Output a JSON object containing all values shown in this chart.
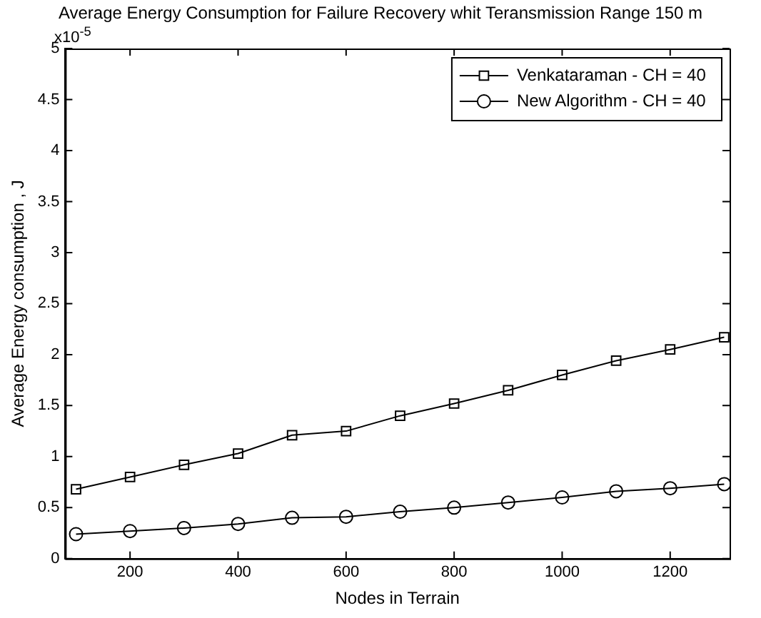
{
  "chart_data": {
    "type": "line",
    "title": "Average Energy Consumption for Failure Recovery whit Teransmission Range 150 m",
    "xlabel": "Nodes in Terrain",
    "ylabel": "Average Energy consumption , J",
    "annotations": [
      "x10$^{-5}$"
    ],
    "x": [
      100,
      200,
      300,
      400,
      500,
      600,
      700,
      800,
      900,
      1000,
      1100,
      1200,
      1300
    ],
    "series": [
      {
        "name": "Venkataraman - CH = 40",
        "color": "#000000",
        "marker": "square",
        "values": [
          0.68,
          0.8,
          0.92,
          1.03,
          1.21,
          1.25,
          1.4,
          1.52,
          1.65,
          1.8,
          1.94,
          2.05,
          2.17
        ]
      },
      {
        "name": "New Algorithm - CH = 40",
        "color": "#000000",
        "marker": "circle",
        "values": [
          0.24,
          0.27,
          0.3,
          0.34,
          0.4,
          0.41,
          0.46,
          0.5,
          0.55,
          0.6,
          0.66,
          0.69,
          0.73
        ]
      }
    ],
    "xlim": [
      80,
      1310
    ],
    "xticks": [
      200,
      400,
      600,
      800,
      1000,
      1200
    ],
    "ylim": [
      0,
      5
    ],
    "yticks": [
      0,
      0.5,
      1,
      1.5,
      2,
      2.5,
      3,
      3.5,
      4,
      4.5,
      5
    ],
    "grid": false,
    "legend": "top right",
    "line_style": "solid"
  }
}
